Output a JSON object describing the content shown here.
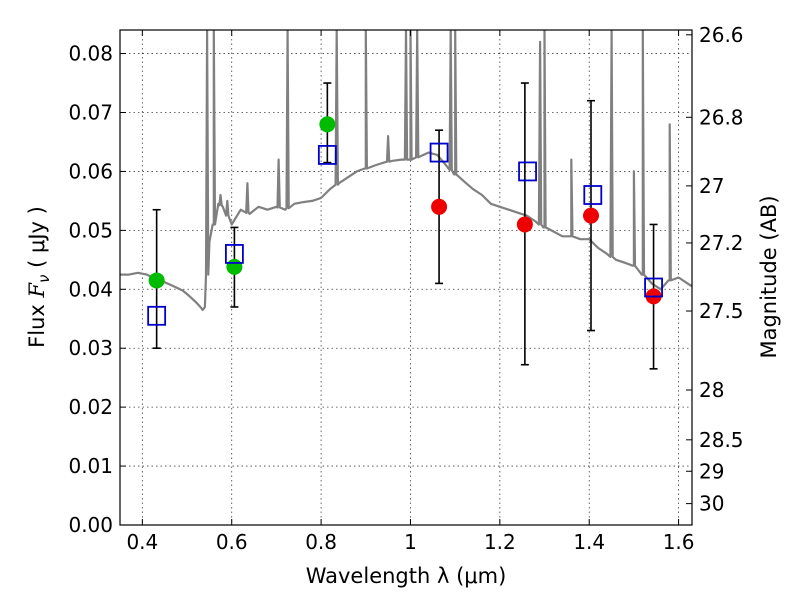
{
  "chart_data": {
    "type": "scatter",
    "xlabel": "Wavelength  λ (μm)",
    "ylabel": "Flux  F_ν  ( μJy )",
    "ylabel_parts": {
      "prefix": "Flux  ",
      "symbol": "F",
      "subscript": "ν",
      "unit": "  ( μJy )"
    },
    "y2label": "Magnitude (AB)",
    "xlim": [
      0.35,
      1.63
    ],
    "ylim": [
      0.0,
      0.084
    ],
    "xticks": [
      0.4,
      0.6,
      0.8,
      1.0,
      1.2,
      1.4,
      1.6
    ],
    "xtick_labels": [
      "0.4",
      "0.6",
      "0.8",
      "1",
      "1.2",
      "1.4",
      "1.6"
    ],
    "yticks": [
      0.0,
      0.01,
      0.02,
      0.03,
      0.04,
      0.05,
      0.06,
      0.07,
      0.08
    ],
    "ytick_labels": [
      "0.00",
      "0.01",
      "0.02",
      "0.03",
      "0.04",
      "0.05",
      "0.06",
      "0.07",
      "0.08"
    ],
    "y2ticks": [
      26.6,
      26.8,
      27.0,
      27.2,
      27.5,
      28.0,
      28.5,
      29.0,
      30.0
    ],
    "y2tick_labels": [
      "26.6",
      "26.8",
      "27",
      "27.2",
      "27.5",
      "28",
      "28.5",
      "29",
      "30"
    ],
    "grid": true,
    "colors": {
      "model": "#808080",
      "green": "#00bb00",
      "red": "#ee0000",
      "square": "#0000cc",
      "errorbar": "#000000"
    },
    "series": [
      {
        "marker": "circle",
        "color": "green",
        "points": [
          {
            "x": 0.432,
            "y": 0.0415,
            "yerr_low": 0.03,
            "yerr_high": 0.0535
          },
          {
            "x": 0.606,
            "y": 0.0438,
            "yerr_low": 0.037,
            "yerr_high": 0.0505
          },
          {
            "x": 0.814,
            "y": 0.068,
            "yerr_low": 0.0615,
            "yerr_high": 0.075
          }
        ]
      },
      {
        "marker": "circle",
        "color": "red",
        "points": [
          {
            "x": 1.064,
            "y": 0.054,
            "yerr_low": 0.041,
            "yerr_high": 0.067
          },
          {
            "x": 1.256,
            "y": 0.051,
            "yerr_low": 0.0272,
            "yerr_high": 0.075
          },
          {
            "x": 1.404,
            "y": 0.0525,
            "yerr_low": 0.033,
            "yerr_high": 0.072
          },
          {
            "x": 1.544,
            "y": 0.0388,
            "yerr_low": 0.0265,
            "yerr_high": 0.051
          }
        ]
      },
      {
        "marker": "open-square",
        "color": "square",
        "points": [
          {
            "x": 0.432,
            "y": 0.0355
          },
          {
            "x": 0.606,
            "y": 0.046
          },
          {
            "x": 0.814,
            "y": 0.0628
          },
          {
            "x": 1.064,
            "y": 0.0632
          },
          {
            "x": 1.262,
            "y": 0.06
          },
          {
            "x": 1.408,
            "y": 0.056
          },
          {
            "x": 1.544,
            "y": 0.0403
          }
        ]
      }
    ],
    "model_spectrum": {
      "x": [
        0.35,
        0.37,
        0.39,
        0.41,
        0.43,
        0.45,
        0.47,
        0.49,
        0.5,
        0.51,
        0.52,
        0.53,
        0.535,
        0.54,
        0.55,
        0.56,
        0.57,
        0.58,
        0.6,
        0.62,
        0.64,
        0.66,
        0.68,
        0.7,
        0.72,
        0.74,
        0.76,
        0.78,
        0.8,
        0.82,
        0.84,
        0.86,
        0.88,
        0.9,
        0.92,
        0.94,
        0.96,
        0.98,
        1.0,
        1.02,
        1.04,
        1.06,
        1.08,
        1.1,
        1.12,
        1.14,
        1.16,
        1.18,
        1.2,
        1.22,
        1.24,
        1.26,
        1.28,
        1.3,
        1.32,
        1.34,
        1.36,
        1.38,
        1.4,
        1.42,
        1.44,
        1.46,
        1.48,
        1.5,
        1.52,
        1.54,
        1.56,
        1.58,
        1.6,
        1.62,
        1.63
      ],
      "y": [
        0.0425,
        0.0425,
        0.0428,
        0.0425,
        0.0418,
        0.0412,
        0.0405,
        0.0398,
        0.0392,
        0.0385,
        0.0378,
        0.037,
        0.0365,
        0.037,
        0.048,
        0.051,
        0.0545,
        0.054,
        0.051,
        0.0535,
        0.0528,
        0.054,
        0.0535,
        0.054,
        0.0535,
        0.0545,
        0.0548,
        0.055,
        0.0555,
        0.057,
        0.058,
        0.059,
        0.06,
        0.0605,
        0.061,
        0.0615,
        0.0618,
        0.062,
        0.062,
        0.0625,
        0.0632,
        0.0628,
        0.061,
        0.0595,
        0.0583,
        0.057,
        0.056,
        0.0545,
        0.054,
        0.0535,
        0.053,
        0.0525,
        0.0515,
        0.0505,
        0.0498,
        0.049,
        0.049,
        0.0485,
        0.0485,
        0.047,
        0.046,
        0.045,
        0.0445,
        0.044,
        0.0425,
        0.041,
        0.04,
        0.0415,
        0.042,
        0.041,
        0.0405
      ]
    },
    "model_spikes": [
      {
        "x": 0.545,
        "y": 0.084
      },
      {
        "x": 0.56,
        "y": 0.084
      },
      {
        "x": 0.575,
        "y": 0.056
      },
      {
        "x": 0.59,
        "y": 0.055
      },
      {
        "x": 0.635,
        "y": 0.058
      },
      {
        "x": 0.705,
        "y": 0.062
      },
      {
        "x": 0.725,
        "y": 0.084
      },
      {
        "x": 0.835,
        "y": 0.084
      },
      {
        "x": 0.9,
        "y": 0.084
      },
      {
        "x": 0.95,
        "y": 0.066
      },
      {
        "x": 0.99,
        "y": 0.084
      },
      {
        "x": 1.0,
        "y": 0.084
      },
      {
        "x": 1.015,
        "y": 0.084
      },
      {
        "x": 1.09,
        "y": 0.084
      },
      {
        "x": 1.1,
        "y": 0.084
      },
      {
        "x": 1.29,
        "y": 0.082
      },
      {
        "x": 1.3,
        "y": 0.084
      },
      {
        "x": 1.36,
        "y": 0.062
      },
      {
        "x": 1.45,
        "y": 0.084
      },
      {
        "x": 1.5,
        "y": 0.06
      },
      {
        "x": 1.52,
        "y": 0.084
      },
      {
        "x": 1.58,
        "y": 0.068
      }
    ]
  }
}
